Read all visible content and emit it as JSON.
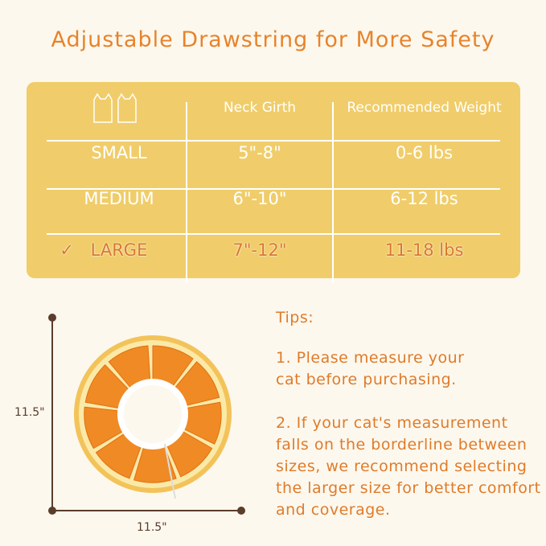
{
  "title": "Adjustable Drawstring for More Safety",
  "table": {
    "headers": [
      "Neck Girth",
      "Recommended Weight"
    ],
    "rows": [
      {
        "size": "SMALL",
        "neck": "5\"-8\"",
        "weight": "0-6 lbs",
        "selected": false
      },
      {
        "size": "MEDIUM",
        "neck": "6\"-10\"",
        "weight": "6-12 lbs",
        "selected": false
      },
      {
        "size": "LARGE",
        "neck": "7\"-12\"",
        "weight": "11-18 lbs",
        "selected": true
      }
    ],
    "check_mark": "✓"
  },
  "tips": {
    "heading": "Tips:",
    "items": [
      "1. Please measure your cat before purchasing.",
      "2. If your cat's measurement falls on the borderline between sizes, we recommend selecting the larger size for better comfort and coverage."
    ]
  },
  "dimensions": {
    "height": "11.5\"",
    "width": "11.5\""
  },
  "colors": {
    "background": "#fcf8ee",
    "table": "#f0cd6a",
    "accent": "#e8832a",
    "selected": "#d9772a"
  }
}
